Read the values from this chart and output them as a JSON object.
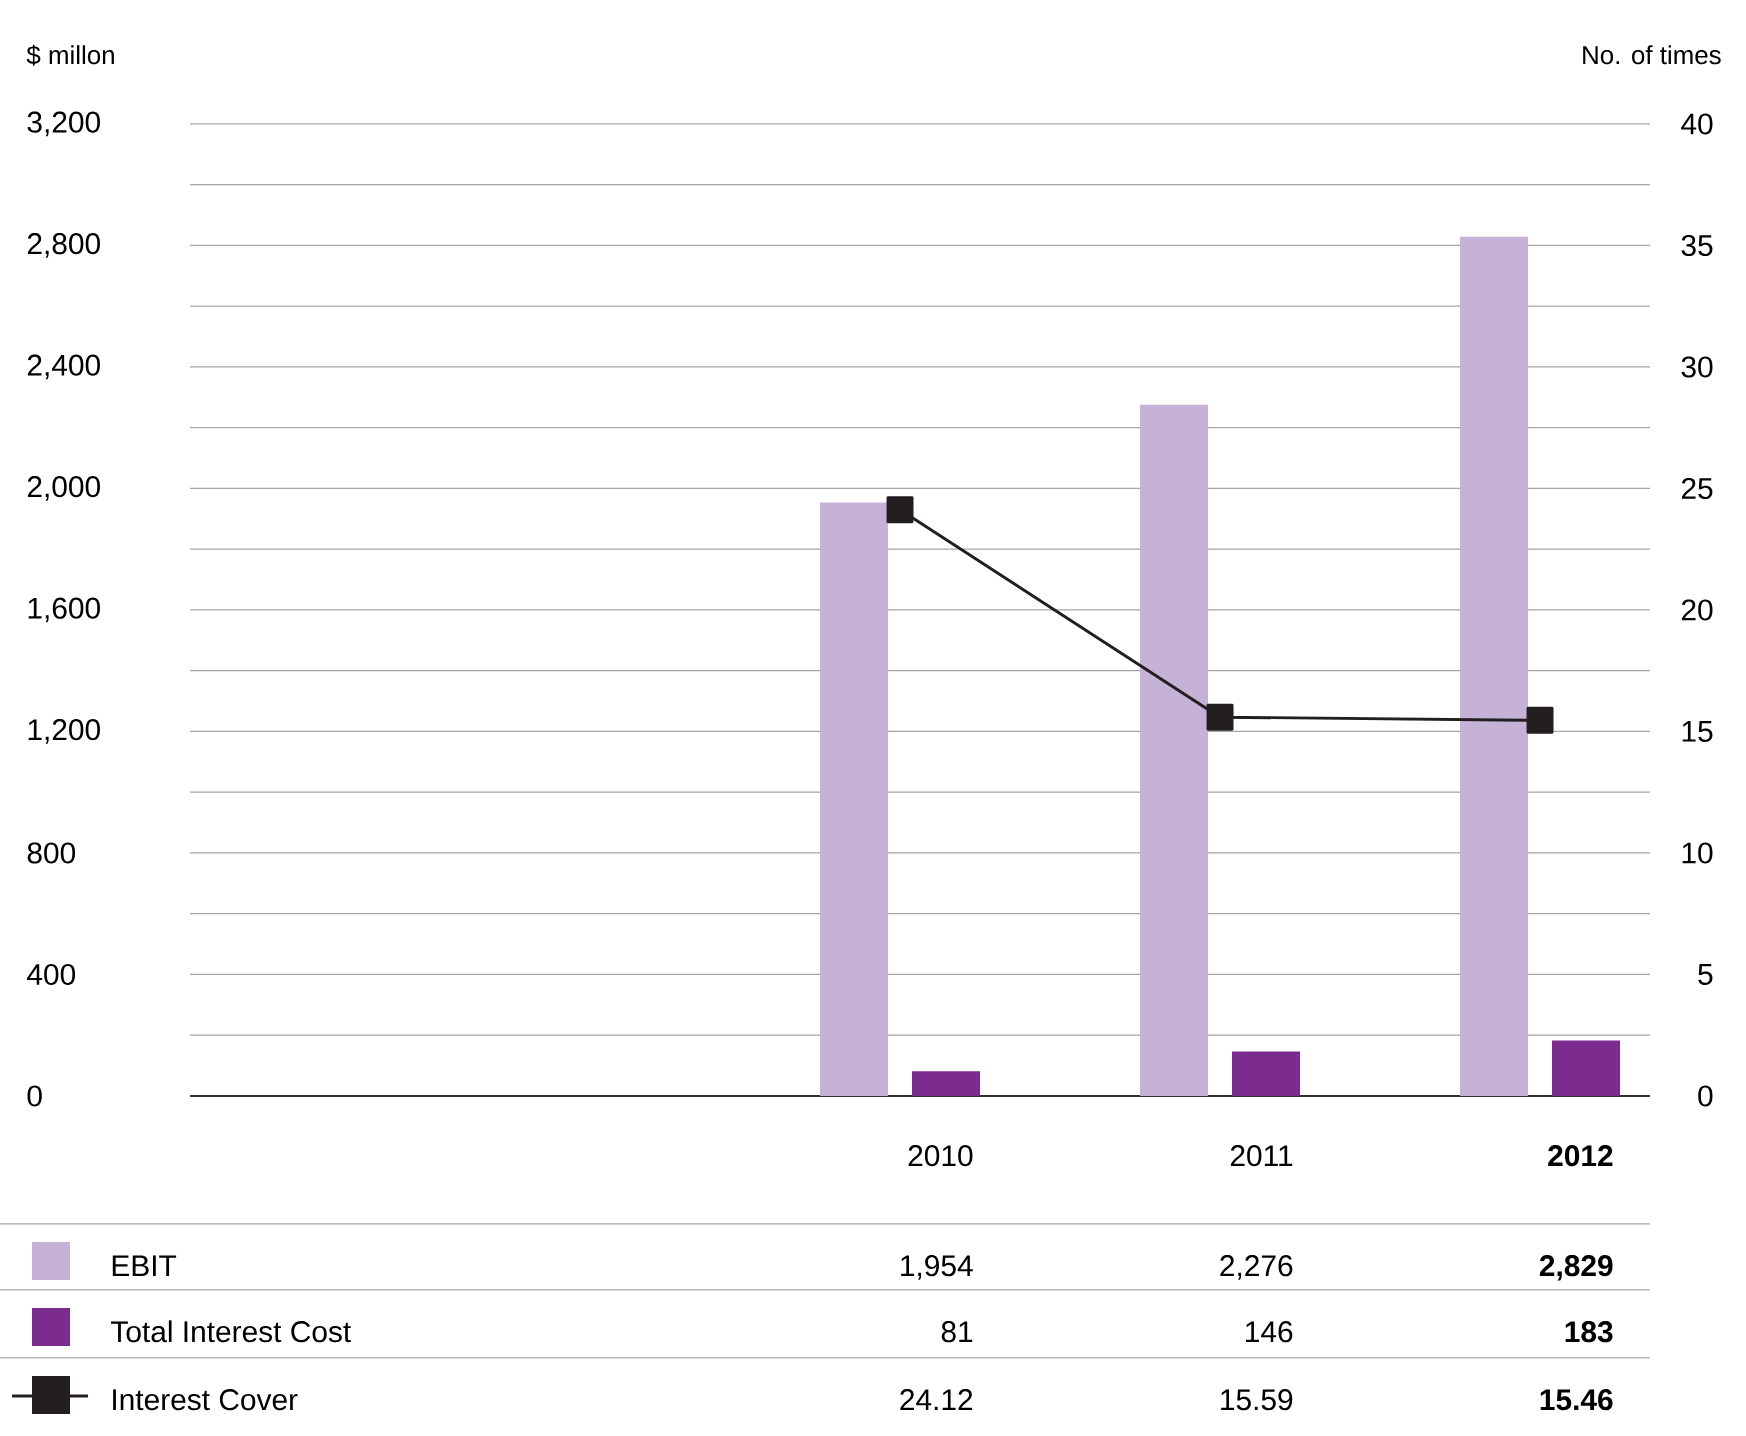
{
  "chart_data": {
    "type": "bar",
    "xlabel": null,
    "ylabel": "$ millon",
    "y2label": "No. of times",
    "categories": [
      null,
      null,
      "2010",
      "2011",
      "2012"
    ],
    "series": [
      {
        "name": "EBIT",
        "color": "#c6b2d7",
        "values": [
          null,
          null,
          1954,
          2276,
          2829
        ],
        "value_labels": [
          null,
          null,
          "1,954",
          "2,276",
          "2,829"
        ]
      },
      {
        "name": "Total Interest Cost",
        "color": "#7b2c8e",
        "values": [
          null,
          null,
          81,
          146,
          183
        ],
        "value_labels": [
          null,
          null,
          "81",
          "146",
          "183"
        ]
      },
      {
        "name": "Interest Cover",
        "type": "line",
        "axis": "y2",
        "color": "#231f20",
        "marker": "square",
        "values": [
          null,
          null,
          24.12,
          15.59,
          15.46
        ],
        "value_labels": [
          null,
          null,
          "24.12",
          "15.59",
          "15.46"
        ]
      }
    ],
    "ylim": [
      0,
      3200
    ],
    "yticks": [
      0,
      {
        "value": 200,
        "label": null
      },
      400,
      {
        "value": 600,
        "label": null
      },
      800,
      {
        "value": 1000,
        "label": null
      },
      {
        "value": 1200,
        "label": "1,200"
      },
      {
        "value": 1400,
        "label": null
      },
      {
        "value": 1600,
        "label": "1,600"
      },
      {
        "value": 1800,
        "label": null
      },
      {
        "value": 2000,
        "label": "2,000"
      },
      {
        "value": 2200,
        "label": null
      },
      {
        "value": 2400,
        "label": "2,400"
      },
      {
        "value": 2600,
        "label": null
      },
      {
        "value": 2800,
        "label": "2,800"
      },
      {
        "value": 3000,
        "label": null
      },
      {
        "value": 3200,
        "label": "3,200"
      }
    ],
    "y2lim": [
      0,
      40
    ],
    "y2ticks": [
      0,
      5,
      10,
      15,
      20,
      25,
      30,
      35,
      40
    ],
    "grid": "y",
    "legend": "bottom"
  }
}
